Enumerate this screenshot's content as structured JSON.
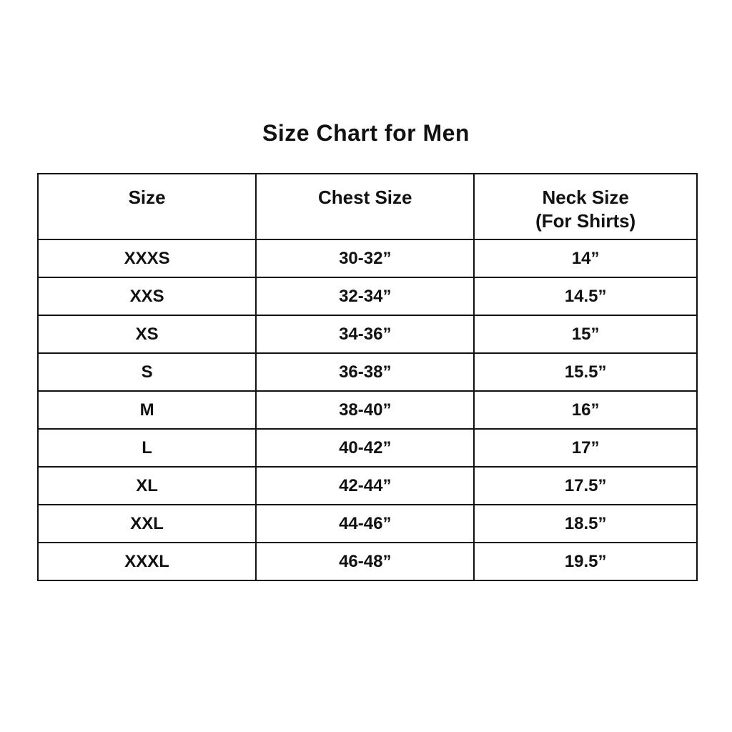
{
  "page": {
    "title": "Size Chart for Men",
    "background_color": "#ffffff",
    "text_color": "#111111",
    "border_color": "#111111"
  },
  "table": {
    "columns": [
      {
        "label": "Size",
        "sublabel": ""
      },
      {
        "label": "Chest Size",
        "sublabel": ""
      },
      {
        "label": "Neck Size",
        "sublabel": "(For Shirts)"
      }
    ],
    "rows": [
      [
        "XXXS",
        "30-32”",
        "14”"
      ],
      [
        "XXS",
        "32-34”",
        "14.5”"
      ],
      [
        "XS",
        "34-36”",
        "15”"
      ],
      [
        "S",
        "36-38”",
        "15.5”"
      ],
      [
        "M",
        "38-40”",
        "16”"
      ],
      [
        "L",
        "40-42”",
        "17”"
      ],
      [
        "XL",
        "42-44”",
        "17.5”"
      ],
      [
        "XXL",
        "44-46”",
        "18.5”"
      ],
      [
        "XXXL",
        "46-48”",
        "19.5”"
      ]
    ]
  },
  "chart_data": {
    "type": "table",
    "title": "Size Chart for Men",
    "columns": [
      "Size",
      "Chest Size",
      "Neck Size (For Shirts)"
    ],
    "rows": [
      [
        "XXXS",
        "30-32”",
        "14”"
      ],
      [
        "XXS",
        "32-34”",
        "14.5”"
      ],
      [
        "XS",
        "34-36”",
        "15”"
      ],
      [
        "S",
        "36-38”",
        "15.5”"
      ],
      [
        "M",
        "38-40”",
        "16”"
      ],
      [
        "L",
        "40-42”",
        "17”"
      ],
      [
        "XL",
        "42-44”",
        "17.5”"
      ],
      [
        "XXL",
        "44-46”",
        "18.5”"
      ],
      [
        "XXXL",
        "46-48”",
        "19.5”"
      ]
    ]
  }
}
